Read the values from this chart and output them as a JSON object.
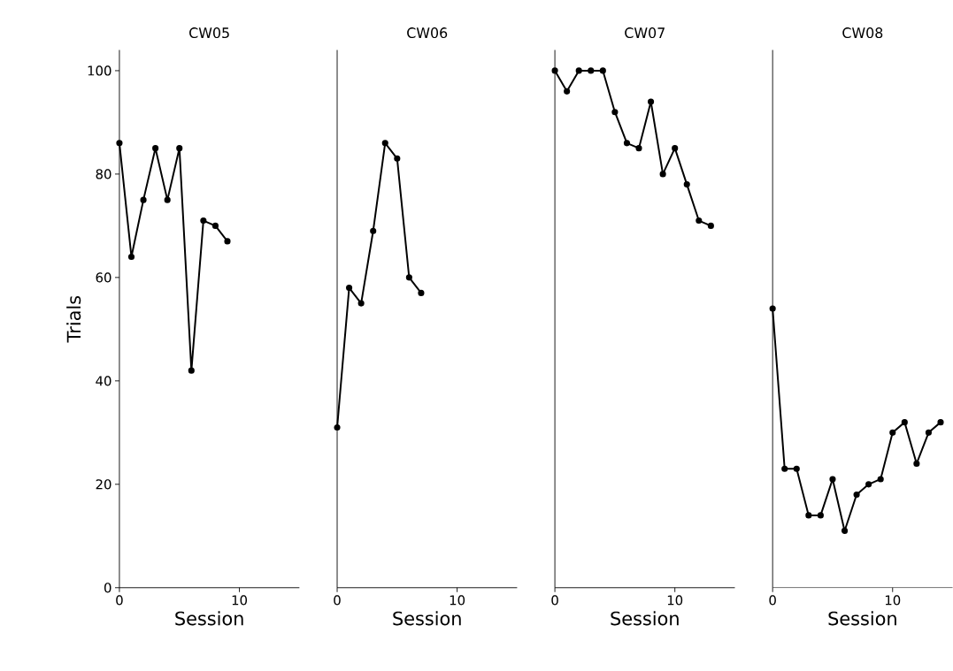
{
  "chart_data": [
    {
      "type": "line",
      "title": "CW05",
      "xlabel": "Session",
      "ylabel": "Trials",
      "x": [
        0,
        1,
        2,
        3,
        4,
        5,
        6,
        7,
        8,
        9
      ],
      "series": [
        {
          "color": "#000000",
          "values": [
            86,
            64,
            75,
            85,
            75,
            85,
            42,
            71,
            70,
            67
          ]
        }
      ],
      "xlim": [
        0,
        15
      ],
      "ylim": [
        0,
        104
      ],
      "xticks": [
        0,
        10
      ],
      "yticks": [
        0,
        20,
        40,
        60,
        80,
        100
      ],
      "marker": "circle",
      "line_style": "solid"
    },
    {
      "type": "line",
      "title": "CW06",
      "xlabel": "Session",
      "x": [
        0,
        1,
        2,
        3,
        4,
        5,
        6,
        7
      ],
      "series": [
        {
          "color": "#000000",
          "values": [
            31,
            58,
            55,
            69,
            86,
            83,
            60,
            57
          ]
        }
      ],
      "xlim": [
        0,
        15
      ],
      "ylim": [
        0,
        104
      ],
      "xticks": [
        0,
        10
      ],
      "yticks": [
        0,
        20,
        40,
        60,
        80,
        100
      ],
      "tick_labels": "x",
      "marker": "circle",
      "line_style": "solid"
    },
    {
      "type": "line",
      "title": "CW07",
      "xlabel": "Session",
      "x": [
        0,
        1,
        2,
        3,
        4,
        5,
        6,
        7,
        8,
        9,
        10,
        11,
        12,
        13
      ],
      "series": [
        {
          "color": "#000000",
          "values": [
            100,
            96,
            100,
            100,
            100,
            92,
            86,
            85,
            94,
            80,
            85,
            78,
            71,
            70
          ]
        }
      ],
      "xlim": [
        0,
        15
      ],
      "ylim": [
        0,
        104
      ],
      "xticks": [
        0,
        10
      ],
      "yticks": [
        0,
        20,
        40,
        60,
        80,
        100
      ],
      "tick_labels": "x",
      "marker": "circle",
      "line_style": "solid"
    },
    {
      "type": "line",
      "title": "CW08",
      "xlabel": "Session",
      "x": [
        0,
        1,
        2,
        3,
        4,
        5,
        6,
        7,
        8,
        9,
        10,
        11,
        12,
        13,
        14
      ],
      "series": [
        {
          "color": "#000000",
          "values": [
            54,
            23,
            23,
            14,
            14,
            21,
            11,
            18,
            20,
            21,
            30,
            32,
            24,
            30,
            32
          ]
        }
      ],
      "xlim": [
        0,
        15
      ],
      "ylim": [
        0,
        104
      ],
      "xticks": [
        0,
        10
      ],
      "yticks": [
        0,
        20,
        40,
        60,
        80,
        100
      ],
      "tick_labels": "x",
      "marker": "circle",
      "line_style": "solid"
    }
  ]
}
